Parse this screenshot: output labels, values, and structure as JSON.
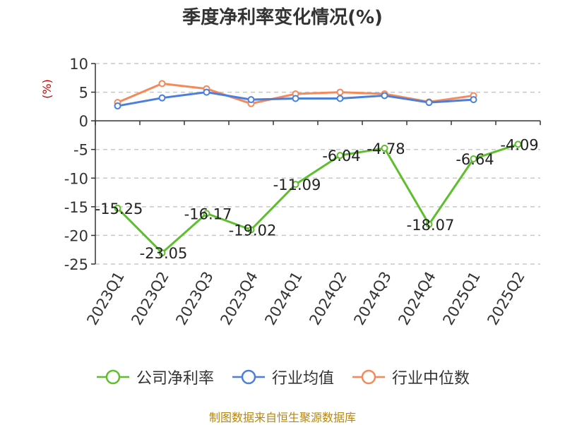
{
  "chart_data": {
    "type": "line",
    "title": "季度净利率变化情况(%)",
    "ylabel": "(%)",
    "categories": [
      "2023Q1",
      "2023Q2",
      "2023Q3",
      "2023Q4",
      "2024Q1",
      "2024Q2",
      "2024Q3",
      "2024Q4",
      "2025Q1",
      "2025Q2"
    ],
    "ylim": [
      -25,
      10
    ],
    "yticks": [
      "10",
      "5",
      "0",
      "-5",
      "-10",
      "-15",
      "-20",
      "-25"
    ],
    "grid": "dashed horizontal",
    "legend_position": "bottom",
    "series": [
      {
        "name": "公司净利率",
        "color": "#5dbe2e",
        "values": [
          -15.25,
          -23.05,
          -16.17,
          -19.02,
          -11.09,
          -6.04,
          -4.78,
          -18.07,
          -6.64,
          -4.09
        ],
        "labels": [
          "-15.25",
          "-23.05",
          "-16.17",
          "-19.02",
          "-11.09",
          "-6.04",
          "-4.78",
          "-18.07",
          "-6.64",
          "-4.09"
        ]
      },
      {
        "name": "行业均值",
        "color": "#4a7fdc",
        "values": [
          2.6,
          4.0,
          5.0,
          3.7,
          3.9,
          3.9,
          4.4,
          3.2,
          3.7,
          null
        ]
      },
      {
        "name": "行业中位数",
        "color": "#f5895a",
        "values": [
          3.2,
          6.5,
          5.6,
          3.0,
          4.7,
          5.0,
          4.7,
          3.3,
          4.4,
          null
        ]
      }
    ]
  },
  "source": "制图数据来自恒生聚源数据库"
}
